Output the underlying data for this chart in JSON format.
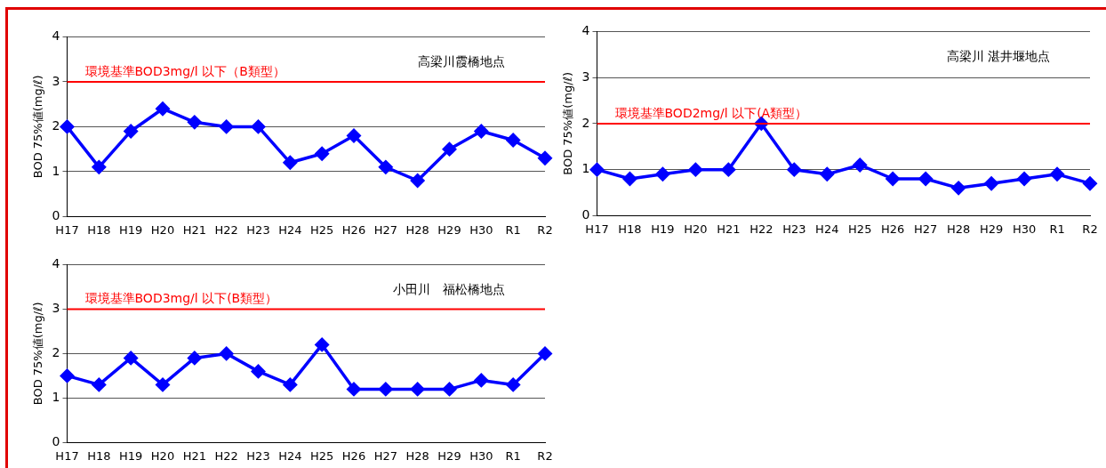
{
  "chart_data": [
    {
      "type": "line",
      "title": "高梁川霞橋地点",
      "ylabel": "BOD 75%値(mg/ℓ)",
      "categories": [
        "H17",
        "H18",
        "H19",
        "H20",
        "H21",
        "H22",
        "H23",
        "H24",
        "H25",
        "H26",
        "H27",
        "H28",
        "H29",
        "H30",
        "R1",
        "R2"
      ],
      "series": [
        {
          "color": "#0000ff",
          "values": [
            2.0,
            1.1,
            1.9,
            2.4,
            2.1,
            2.0,
            2.0,
            1.2,
            1.4,
            1.8,
            1.1,
            0.8,
            1.5,
            1.9,
            1.7,
            1.3
          ]
        }
      ],
      "ylim": [
        0,
        4
      ],
      "yticks": [
        0,
        1,
        2,
        3,
        4
      ],
      "grid": "y",
      "marker": "diamond",
      "line_style": "solid",
      "legend": false,
      "ref_lines": [
        {
          "axis": "y",
          "value": 3,
          "label": "環境基準BOD3mg/l 以下（B類型）",
          "color": "#ff0000"
        }
      ]
    },
    {
      "type": "line",
      "title": "高梁川 湛井堰地点",
      "ylabel": "BOD 75%値(mg/ℓ)",
      "categories": [
        "H17",
        "H18",
        "H19",
        "H20",
        "H21",
        "H22",
        "H23",
        "H24",
        "H25",
        "H26",
        "H27",
        "H28",
        "H29",
        "H30",
        "R1",
        "R2"
      ],
      "series": [
        {
          "color": "#0000ff",
          "values": [
            1.0,
            0.8,
            0.9,
            1.0,
            1.0,
            2.0,
            1.0,
            0.9,
            1.1,
            0.8,
            0.8,
            0.6,
            0.7,
            0.8,
            0.9,
            0.7
          ]
        }
      ],
      "ylim": [
        0,
        4
      ],
      "yticks": [
        0,
        1,
        2,
        3,
        4
      ],
      "grid": "y",
      "marker": "diamond",
      "line_style": "solid",
      "legend": false,
      "ref_lines": [
        {
          "axis": "y",
          "value": 2,
          "label": "環境基準BOD2mg/l 以下(A類型）",
          "color": "#ff0000"
        }
      ]
    },
    {
      "type": "line",
      "title": "小田川　福松橋地点",
      "ylabel": "BOD 75%値(mg/ℓ)",
      "categories": [
        "H17",
        "H18",
        "H19",
        "H20",
        "H21",
        "H22",
        "H23",
        "H24",
        "H25",
        "H26",
        "H27",
        "H28",
        "H29",
        "H30",
        "R1",
        "R2"
      ],
      "series": [
        {
          "color": "#0000ff",
          "values": [
            1.5,
            1.3,
            1.9,
            1.3,
            1.9,
            2.0,
            1.6,
            1.3,
            2.2,
            1.2,
            1.2,
            1.2,
            1.2,
            1.4,
            1.3,
            2.0
          ]
        }
      ],
      "ylim": [
        0,
        4
      ],
      "yticks": [
        0,
        1,
        2,
        3,
        4
      ],
      "grid": "y",
      "marker": "diamond",
      "line_style": "solid",
      "legend": false,
      "ref_lines": [
        {
          "axis": "y",
          "value": 3,
          "label": "環境基準BOD3mg/l 以下(B類型）",
          "color": "#ff0000"
        }
      ]
    }
  ]
}
